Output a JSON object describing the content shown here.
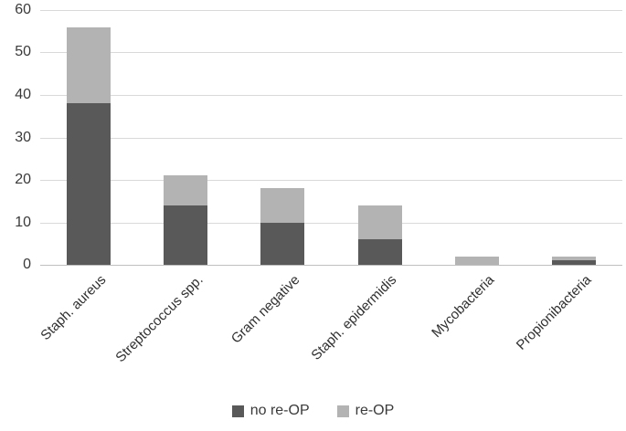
{
  "chart_data": {
    "type": "bar",
    "stacked": true,
    "title": "",
    "xlabel": "",
    "ylabel": "",
    "categories": [
      "Staph. aureus",
      "Streptococcus spp.",
      "Gram negative",
      "Staph. epidermidis",
      "Mycobacteria",
      "Propionibacteria"
    ],
    "series": [
      {
        "name": "no re-OP",
        "color": "#595959",
        "values": [
          38,
          14,
          10,
          6,
          0,
          1
        ]
      },
      {
        "name": "re-OP",
        "color": "#b3b3b3",
        "values": [
          18,
          7,
          8,
          8,
          2,
          1
        ]
      }
    ],
    "ylim": [
      0,
      60
    ],
    "ytick_step": 10,
    "ytick_labels": [
      "0",
      "10",
      "20",
      "30",
      "40",
      "50",
      "60"
    ],
    "grid": true,
    "legend_position": "bottom"
  },
  "colors": {
    "background": "#ffffff",
    "gridline": "#d9d9d9",
    "axis": "#bfbfbf",
    "text": "#3a3a3a",
    "series_dark": "#595959",
    "series_light": "#b3b3b3"
  }
}
